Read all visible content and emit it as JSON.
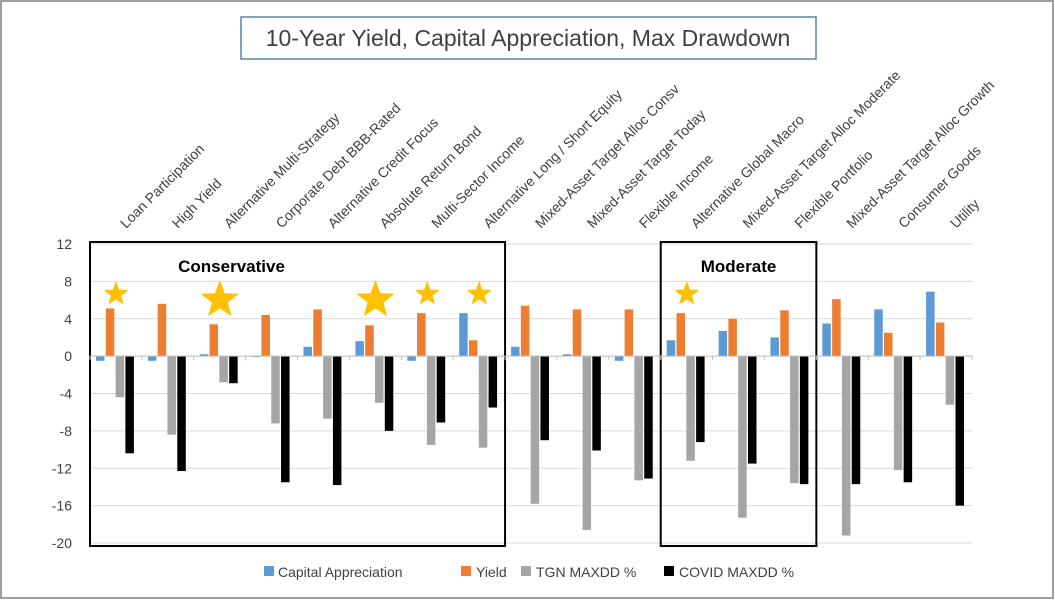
{
  "chart_data": {
    "type": "bar",
    "title": "10-Year Yield, Capital Appreciation, Max Drawdown",
    "xlabel": "",
    "ylabel": "",
    "ylim": [
      -20,
      12
    ],
    "y_ticks": [
      12,
      8,
      4,
      0,
      -4,
      -8,
      -12,
      -16,
      -20
    ],
    "grid": true,
    "legend_position": "bottom",
    "categories": [
      "Loan Participation",
      "High Yield",
      "Alternative Multi-Strategy",
      "Corporate Debt BBB-Rated",
      "Alternative Credit Focus",
      "Absolute Return Bond",
      "Multi-Sector Income",
      "Alternative Long / Short Equity",
      "Mixed-Asset Target Alloc Consv",
      "Mixed-Asset Target Today",
      "Flexible Income",
      "Alternative Global Macro",
      "Mixed-Asset Target Alloc Moderate",
      "Flexible Portfolio",
      "Mixed-Asset Target Alloc Growth",
      "Consumer Goods",
      "Utility"
    ],
    "series": [
      {
        "name": "Capital Appreciation",
        "color": "#5B9BD5",
        "values": [
          -0.5,
          -0.5,
          0.2,
          -0.1,
          1.0,
          1.6,
          -0.5,
          4.6,
          1.0,
          0.2,
          -0.5,
          1.7,
          2.7,
          2.0,
          3.5,
          5.0,
          6.9
        ]
      },
      {
        "name": "Yield",
        "color": "#ED7D31",
        "values": [
          5.1,
          5.6,
          3.4,
          4.4,
          5.0,
          3.3,
          4.6,
          1.7,
          5.4,
          5.0,
          5.0,
          4.6,
          4.0,
          4.9,
          6.1,
          2.5,
          3.6
        ]
      },
      {
        "name": "TGN MAXDD %",
        "color": "#A5A5A5",
        "values": [
          -4.4,
          -8.4,
          -2.8,
          -7.2,
          -6.7,
          -5.0,
          -9.5,
          -9.8,
          -15.8,
          -18.6,
          -13.3,
          -11.2,
          -17.3,
          -13.6,
          -19.2,
          -12.2,
          -5.2
        ]
      },
      {
        "name": "COVID MAXDD %",
        "color": "#000000",
        "values": [
          -10.4,
          -12.3,
          -2.9,
          -13.5,
          -13.8,
          -8.0,
          -7.1,
          -5.5,
          -9.0,
          -10.1,
          -13.1,
          -9.2,
          -11.5,
          -13.7,
          -13.7,
          -13.5,
          -16.0
        ]
      }
    ],
    "annotations": {
      "boxes": [
        {
          "label": "Conservative",
          "start_index": 0,
          "end_index": 7
        },
        {
          "label": "Moderate",
          "start_index": 11,
          "end_index": 13
        }
      ],
      "stars": [
        {
          "index": 0,
          "size": "small"
        },
        {
          "index": 2,
          "size": "large"
        },
        {
          "index": 5,
          "size": "large"
        },
        {
          "index": 6,
          "size": "small"
        },
        {
          "index": 7,
          "size": "small"
        },
        {
          "index": 11,
          "size": "small"
        }
      ],
      "star_color": "#FFC000"
    }
  }
}
